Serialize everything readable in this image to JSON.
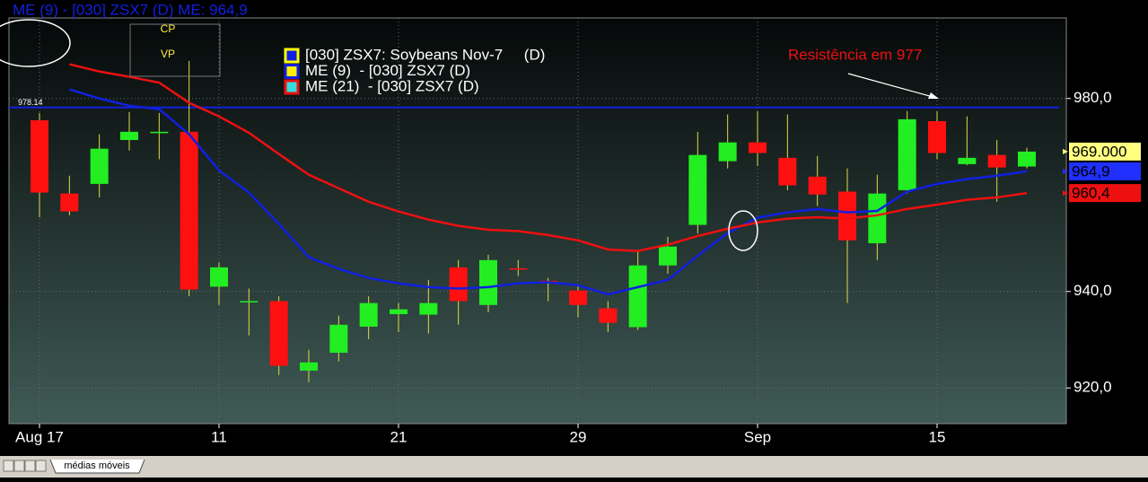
{
  "chart_data": {
    "type": "candlestick",
    "title": "ME (9)  - [030] ZSX7 (D)  ME: 964,9",
    "categories": [
      "Aug 17",
      null,
      null,
      null,
      null,
      null,
      "11",
      null,
      null,
      null,
      null,
      null,
      "21",
      null,
      null,
      null,
      null,
      null,
      "29",
      null,
      null,
      null,
      null,
      null,
      "Sep",
      null,
      null,
      null,
      null,
      null,
      "15",
      null,
      null,
      null
    ],
    "ohlc": {
      "name": "[030] ZSX7: Soybeans Nov-7     (D)",
      "color": "#ffff00",
      "up_color": "#22ee22",
      "down_color": "#ff1010",
      "open": [
        975.5,
        960.3,
        962.3,
        971.4,
        973.0,
        973.1,
        941.0,
        938.0,
        938.0,
        923.6,
        927.3,
        932.7,
        935.3,
        935.2,
        945.0,
        937.2,
        944.8,
        942.2,
        940.2,
        936.5,
        932.6,
        945.4,
        953.8,
        967.0,
        970.9,
        967.7,
        963.8,
        960.7,
        950.0,
        961.0,
        975.3,
        966.4,
        968.3,
        965.9
      ],
      "high": [
        977.0,
        964.0,
        972.6,
        977.2,
        977.0,
        987.8,
        946.0,
        940.6,
        939.0,
        927.9,
        935.0,
        939.0,
        937.6,
        942.4,
        946.5,
        947.6,
        946.5,
        942.8,
        941.3,
        938.0,
        948.4,
        951.3,
        973.1,
        976.7,
        977.4,
        976.7,
        968.1,
        965.5,
        964.2,
        977.4,
        977.4,
        976.3,
        971.4,
        969.8
      ],
      "low": [
        955.4,
        955.8,
        959.5,
        969.2,
        967.4,
        939.0,
        937.2,
        930.9,
        922.7,
        921.2,
        925.5,
        930.1,
        931.6,
        931.3,
        933.1,
        935.7,
        943.2,
        938.0,
        934.6,
        931.6,
        932.0,
        943.7,
        952.0,
        965.5,
        966.0,
        961.0,
        957.7,
        937.6,
        946.5,
        960.3,
        967.4,
        966.2,
        958.6,
        965.5
      ],
      "close": [
        960.5,
        956.6,
        969.6,
        973.1,
        973.1,
        940.4,
        945.0,
        938.0,
        924.6,
        925.3,
        933.1,
        937.6,
        936.3,
        937.6,
        938.0,
        946.5,
        944.6,
        941.9,
        937.2,
        933.5,
        945.4,
        949.3,
        968.3,
        970.9,
        968.7,
        962.0,
        960.1,
        950.6,
        960.3,
        975.7,
        968.7,
        967.7,
        965.7,
        969.0
      ]
    },
    "series": [
      {
        "name": "ME (9)  - [030] ZSX7 (D)",
        "color": "#1020e0",
        "values": [
          null,
          981.9,
          980.0,
          978.5,
          977.8,
          972.6,
          965.1,
          960.5,
          954.0,
          947.1,
          944.7,
          942.8,
          941.7,
          940.9,
          940.6,
          940.9,
          941.7,
          941.9,
          941.3,
          939.4,
          940.9,
          942.4,
          947.4,
          952.1,
          955.3,
          956.4,
          957.1,
          956.4,
          956.7,
          960.7,
          962.3,
          963.3,
          964.0,
          964.9
        ]
      },
      {
        "name": "ME (21)  - [030] ZSX7 (D)",
        "color": "#ee1010",
        "values": [
          null,
          987.1,
          985.6,
          984.5,
          983.3,
          979.1,
          976.3,
          972.9,
          968.5,
          964.2,
          961.4,
          958.6,
          956.6,
          954.9,
          953.6,
          952.8,
          952.5,
          951.7,
          950.6,
          948.7,
          948.4,
          949.7,
          951.5,
          953.0,
          954.3,
          955.1,
          955.4,
          955.1,
          955.8,
          957.1,
          958.0,
          959.0,
          959.5,
          960.4
        ]
      }
    ],
    "ylim": [
      912.6,
      996.7
    ],
    "yticks": [
      {
        "value": 920,
        "label": "920,0"
      },
      {
        "value": 940,
        "label": "940,0"
      },
      {
        "value": 980,
        "label": "980,0"
      }
    ],
    "grid": true,
    "hline": {
      "value": 978.14,
      "color": "#1020e0"
    },
    "price_markers": [
      {
        "value": 969.0,
        "label": "969.000",
        "color": "#ffff80"
      },
      {
        "value": 964.9,
        "label": "964,9",
        "color": "#2030ff"
      },
      {
        "value": 960.4,
        "label": "960,4",
        "color": "#ee1010"
      }
    ],
    "annotation": "Resistência em 977",
    "box_labels": [
      "CP",
      "VP"
    ],
    "tab": "médias móveis"
  }
}
